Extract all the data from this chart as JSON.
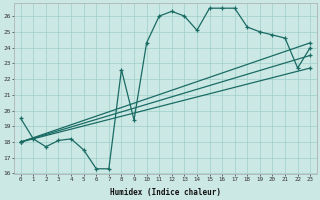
{
  "xlabel": "Humidex (Indice chaleur)",
  "bg_color": "#cce8e5",
  "grid_color": "#9ecfcb",
  "line_color": "#1a6b64",
  "xlim": [
    -0.5,
    23.5
  ],
  "ylim": [
    16,
    26.8
  ],
  "yticks": [
    16,
    17,
    18,
    19,
    20,
    21,
    22,
    23,
    24,
    25,
    26
  ],
  "xticks": [
    0,
    1,
    2,
    3,
    4,
    5,
    6,
    7,
    8,
    9,
    10,
    11,
    12,
    13,
    14,
    15,
    16,
    17,
    18,
    19,
    20,
    21,
    22,
    23
  ],
  "line1_x": [
    0,
    1,
    2,
    3,
    4,
    5,
    6,
    7,
    8,
    9,
    10,
    11,
    12,
    13,
    14,
    15,
    16,
    17,
    18,
    19,
    20,
    21,
    22,
    23
  ],
  "line1_y": [
    19.5,
    18.2,
    17.7,
    18.1,
    18.2,
    17.5,
    16.3,
    16.3,
    22.6,
    19.4,
    24.3,
    26.0,
    26.3,
    26.0,
    25.1,
    26.5,
    26.5,
    26.5,
    25.3,
    25.0,
    24.8,
    24.6,
    22.7,
    24.0
  ],
  "line2_x": [
    0,
    23
  ],
  "line2_y": [
    18.0,
    24.3
  ],
  "line3_x": [
    0,
    23
  ],
  "line3_y": [
    18.0,
    23.5
  ],
  "line4_x": [
    0,
    23
  ],
  "line4_y": [
    18.0,
    22.7
  ]
}
